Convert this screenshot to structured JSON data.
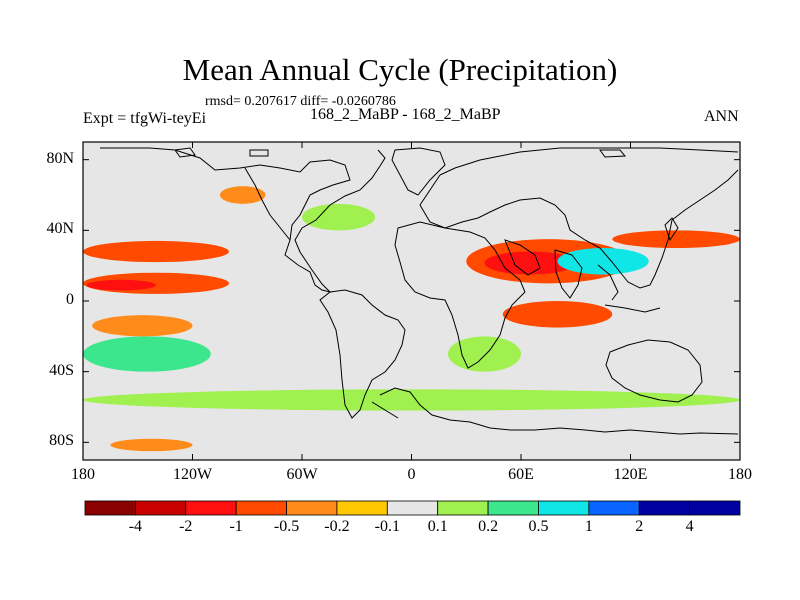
{
  "chart_data": {
    "type": "heatmap",
    "title": "Mean Annual Cycle (Precipitation)",
    "stats": "rmsd= 0.207617 diff= -0.0260786",
    "experiment": "Expt = tfgWi-teyEi",
    "runs": "168_2_MaBP - 168_2_MaBP",
    "season": "ANN",
    "xrange": [
      -180,
      180
    ],
    "yrange": [
      -90,
      90
    ],
    "x_ticks": [
      {
        "value": -180,
        "label": "180"
      },
      {
        "value": -120,
        "label": "120W"
      },
      {
        "value": -60,
        "label": "60W"
      },
      {
        "value": 0,
        "label": "0"
      },
      {
        "value": 60,
        "label": "60E"
      },
      {
        "value": 120,
        "label": "120E"
      },
      {
        "value": 180,
        "label": "180"
      }
    ],
    "y_ticks": [
      {
        "value": 80,
        "label": "80N"
      },
      {
        "value": 40,
        "label": "40N"
      },
      {
        "value": 0,
        "label": "0"
      },
      {
        "value": -40,
        "label": "40S"
      },
      {
        "value": -80,
        "label": "80S"
      }
    ],
    "colorbar": {
      "levels": [
        "-4",
        "-2",
        "-1",
        "-0.5",
        "-0.2",
        "-0.1",
        "0.1",
        "0.2",
        "0.5",
        "1",
        "2",
        "4"
      ],
      "colors": [
        "#8b0000",
        "#c80000",
        "#ff1010",
        "#ff4a00",
        "#ff8c1a",
        "#ffc800",
        "#e6e6e6",
        "#a0f050",
        "#3ce68c",
        "#10e6e6",
        "#0a64ff",
        "#0000a0"
      ]
    },
    "features": [
      {
        "region": "north-pacific-30N",
        "lon": [
          -180,
          -100
        ],
        "lat": [
          22,
          34
        ],
        "category": "-0.5"
      },
      {
        "region": "tropical-pacific-north",
        "lon": [
          -180,
          -100
        ],
        "lat": [
          4,
          16
        ],
        "category": "-0.5"
      },
      {
        "region": "tropical-pacific-core",
        "lon": [
          -178,
          -140
        ],
        "lat": [
          6,
          12
        ],
        "category": "-1"
      },
      {
        "region": "south-pacific-wet",
        "lon": [
          -180,
          -110
        ],
        "lat": [
          -40,
          -20
        ],
        "category": "0.5"
      },
      {
        "region": "south-pacific-dry",
        "lon": [
          -175,
          -120
        ],
        "lat": [
          -20,
          -8
        ],
        "category": "-0.2"
      },
      {
        "region": "asia-monsoon",
        "lon": [
          30,
          120
        ],
        "lat": [
          10,
          35
        ],
        "category": "-0.5"
      },
      {
        "region": "india-core",
        "lon": [
          40,
          90
        ],
        "lat": [
          15,
          28
        ],
        "category": "-1"
      },
      {
        "region": "tibet-wet",
        "lon": [
          80,
          130
        ],
        "lat": [
          15,
          30
        ],
        "category": "1"
      },
      {
        "region": "indian-ocean-dry",
        "lon": [
          50,
          110
        ],
        "lat": [
          -15,
          0
        ],
        "category": "-0.5"
      },
      {
        "region": "africa-south-wet",
        "lon": [
          20,
          60
        ],
        "lat": [
          -40,
          -20
        ],
        "category": "0.2"
      },
      {
        "region": "southern-ocean-band",
        "lon": [
          -180,
          180
        ],
        "lat": [
          -62,
          -50
        ],
        "category": "0.2"
      },
      {
        "region": "antarctic-coast-dry",
        "lon": [
          -165,
          -120
        ],
        "lat": [
          -85,
          -78
        ],
        "category": "-0.2"
      },
      {
        "region": "east-asia-dry",
        "lon": [
          110,
          180
        ],
        "lat": [
          30,
          40
        ],
        "category": "-0.5"
      },
      {
        "region": "north-atlantic-wet",
        "lon": [
          -60,
          -20
        ],
        "lat": [
          40,
          55
        ],
        "category": "0.2"
      },
      {
        "region": "north-america-dry",
        "lon": [
          -105,
          -80
        ],
        "lat": [
          55,
          65
        ],
        "category": "-0.2"
      }
    ]
  }
}
